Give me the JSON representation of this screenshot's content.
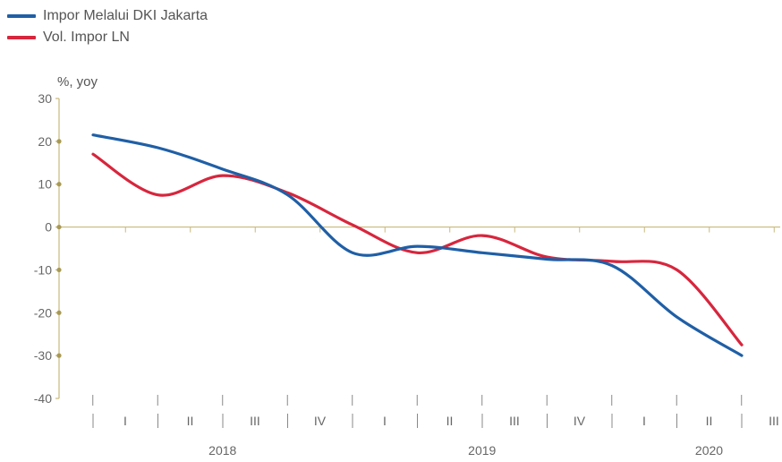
{
  "chart_data": {
    "type": "line",
    "ylabel": "%, yoy",
    "ylim": [
      -40,
      30
    ],
    "yticks": [
      30,
      20,
      10,
      0,
      -10,
      -20,
      -30,
      -40
    ],
    "categories": [
      "I",
      "II",
      "III",
      "IV",
      "I",
      "II",
      "III",
      "IV",
      "I",
      "II",
      "III"
    ],
    "years": [
      {
        "label": "2018",
        "span": [
          "I",
          "IV"
        ]
      },
      {
        "label": "2019",
        "span": [
          "I",
          "IV"
        ]
      },
      {
        "label": "2020",
        "span": [
          "I",
          "III"
        ]
      }
    ],
    "series": [
      {
        "name": "Impor Melalui  DKI Jakarta",
        "color": "#1f5fa6",
        "values": [
          21.5,
          18.5,
          13.5,
          7.5,
          -6.0,
          -4.5,
          -6.0,
          -7.5,
          -9.0,
          -21.0,
          -30.0
        ]
      },
      {
        "name": "Vol. Impor LN",
        "color": "#d7263d",
        "values": [
          17.0,
          7.5,
          12.0,
          8.0,
          0.5,
          -6.0,
          -2.0,
          -7.0,
          -8.0,
          -10.0,
          -27.5
        ]
      }
    ],
    "legend_position": "top-left",
    "grid": false,
    "axis_color": "#c9b97a"
  }
}
